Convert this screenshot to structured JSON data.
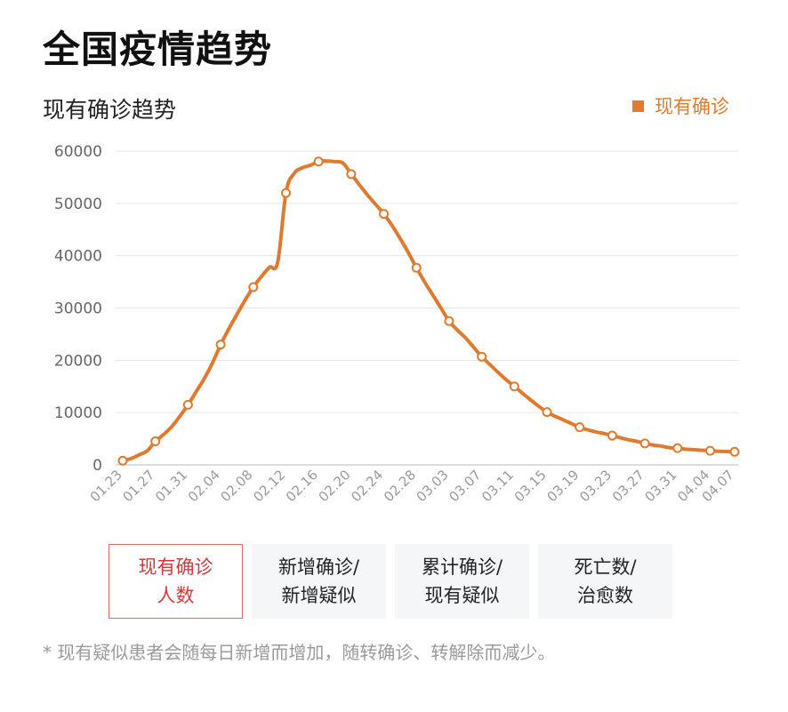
{
  "page": {
    "title": "全国疫情趋势",
    "footnote": "* 现有疑似患者会随每日新增而增加，随转确诊、转解除而减少。"
  },
  "colors": {
    "series": "#e07a2f",
    "grid": "#e6e6e6",
    "axis_text": "#9a9a9a",
    "tab_active_border": "#d96a6a",
    "tab_active_text": "#d03a3a",
    "tab_bg": "#f4f6f8"
  },
  "tabs": [
    {
      "label": "现有确诊\n人数",
      "active": true
    },
    {
      "label": "新增确诊/\n新增疑似",
      "active": false
    },
    {
      "label": "累计确诊/\n现有疑似",
      "active": false
    },
    {
      "label": "死亡数/\n治愈数",
      "active": false
    }
  ],
  "chart_data": {
    "type": "line",
    "title": "现有确诊趋势",
    "xlabel": "",
    "ylabel": "",
    "ylim": [
      0,
      60000
    ],
    "yticks": [
      0,
      10000,
      20000,
      30000,
      40000,
      50000,
      60000
    ],
    "grid": true,
    "legend_position": "top-right",
    "xtick_labels": [
      "01.23",
      "01.27",
      "01.31",
      "02.04",
      "02.08",
      "02.12",
      "02.16",
      "02.20",
      "02.24",
      "02.28",
      "03.03",
      "03.07",
      "03.11",
      "03.15",
      "03.19",
      "03.23",
      "03.27",
      "03.31",
      "04.04",
      "04.07"
    ],
    "series": [
      {
        "name": "现有确诊",
        "x": [
          "01.23",
          "01.24",
          "01.25",
          "01.26",
          "01.27",
          "01.28",
          "01.29",
          "01.30",
          "01.31",
          "02.01",
          "02.02",
          "02.03",
          "02.04",
          "02.05",
          "02.06",
          "02.07",
          "02.08",
          "02.09",
          "02.10",
          "02.11",
          "02.12",
          "02.13",
          "02.14",
          "02.15",
          "02.16",
          "02.17",
          "02.18",
          "02.19",
          "02.20",
          "02.21",
          "02.22",
          "02.23",
          "02.24",
          "02.25",
          "02.26",
          "02.27",
          "02.28",
          "02.29",
          "03.01",
          "03.02",
          "03.03",
          "03.04",
          "03.05",
          "03.06",
          "03.07",
          "03.08",
          "03.09",
          "03.10",
          "03.11",
          "03.12",
          "03.13",
          "03.14",
          "03.15",
          "03.16",
          "03.17",
          "03.18",
          "03.19",
          "03.20",
          "03.21",
          "03.22",
          "03.23",
          "03.24",
          "03.25",
          "03.26",
          "03.27",
          "03.28",
          "03.29",
          "03.30",
          "03.31",
          "04.01",
          "04.02",
          "04.03",
          "04.04",
          "04.05",
          "04.06",
          "04.07"
        ],
        "values": [
          800,
          1200,
          1900,
          2700,
          4500,
          5800,
          7300,
          9300,
          11500,
          14000,
          16500,
          19500,
          23000,
          26000,
          28800,
          31500,
          34000,
          36000,
          37800,
          38800,
          52000,
          55700,
          56800,
          57300,
          58000,
          58100,
          58000,
          57700,
          55600,
          53600,
          51600,
          49800,
          48000,
          45800,
          43300,
          40600,
          37700,
          35000,
          32500,
          30000,
          27500,
          25800,
          24300,
          22500,
          20700,
          19200,
          17700,
          16300,
          15000,
          13700,
          12400,
          11200,
          10100,
          9300,
          8600,
          7900,
          7200,
          6700,
          6300,
          6000,
          5600,
          5200,
          4800,
          4500,
          4100,
          3800,
          3600,
          3300,
          3200,
          3000,
          2900,
          2800,
          2700,
          2600,
          2550,
          2500
        ],
        "markers": [
          "01.23",
          "01.27",
          "01.31",
          "02.04",
          "02.08",
          "02.12",
          "02.16",
          "02.20",
          "02.24",
          "02.28",
          "03.03",
          "03.07",
          "03.11",
          "03.15",
          "03.19",
          "03.23",
          "03.27",
          "03.31",
          "04.04",
          "04.07"
        ]
      }
    ]
  }
}
